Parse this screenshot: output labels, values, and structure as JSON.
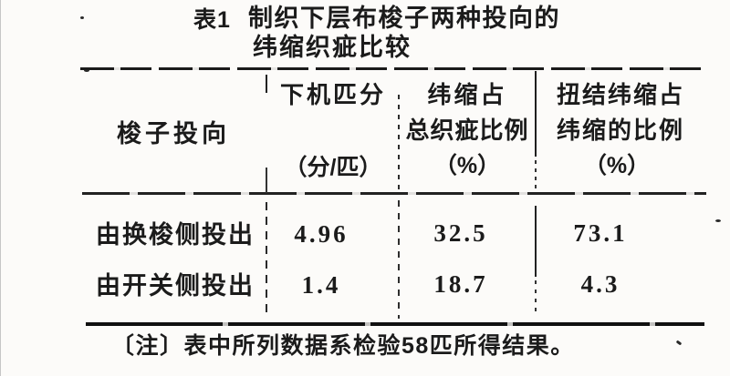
{
  "title": {
    "tag": "表1",
    "line1": "制织下层布梭子两种投向的",
    "line2": "纬缩织疵比较"
  },
  "table": {
    "header": {
      "col1": "梭子投向",
      "col2_line1": "下机匹分",
      "col2_line2": "（分/匹）",
      "col3_line1": "纬缩占",
      "col3_line2": "总织疵比例",
      "col3_line3": "（%）",
      "col4_line1": "扭结纬缩占",
      "col4_line2": "纬缩的比例",
      "col4_line3": "（%）"
    },
    "rows": [
      {
        "label": "由换梭侧投出",
        "values": [
          "4.96",
          "32.5",
          "73.1"
        ]
      },
      {
        "label": "由开关侧投出",
        "values": [
          "1.4",
          "18.7",
          "4.3"
        ]
      }
    ]
  },
  "note": "〔注〕表中所列数据系检验58匹所得结果。",
  "colors": {
    "paper": "#fcfbf9",
    "ink": "#1b1b1b"
  }
}
